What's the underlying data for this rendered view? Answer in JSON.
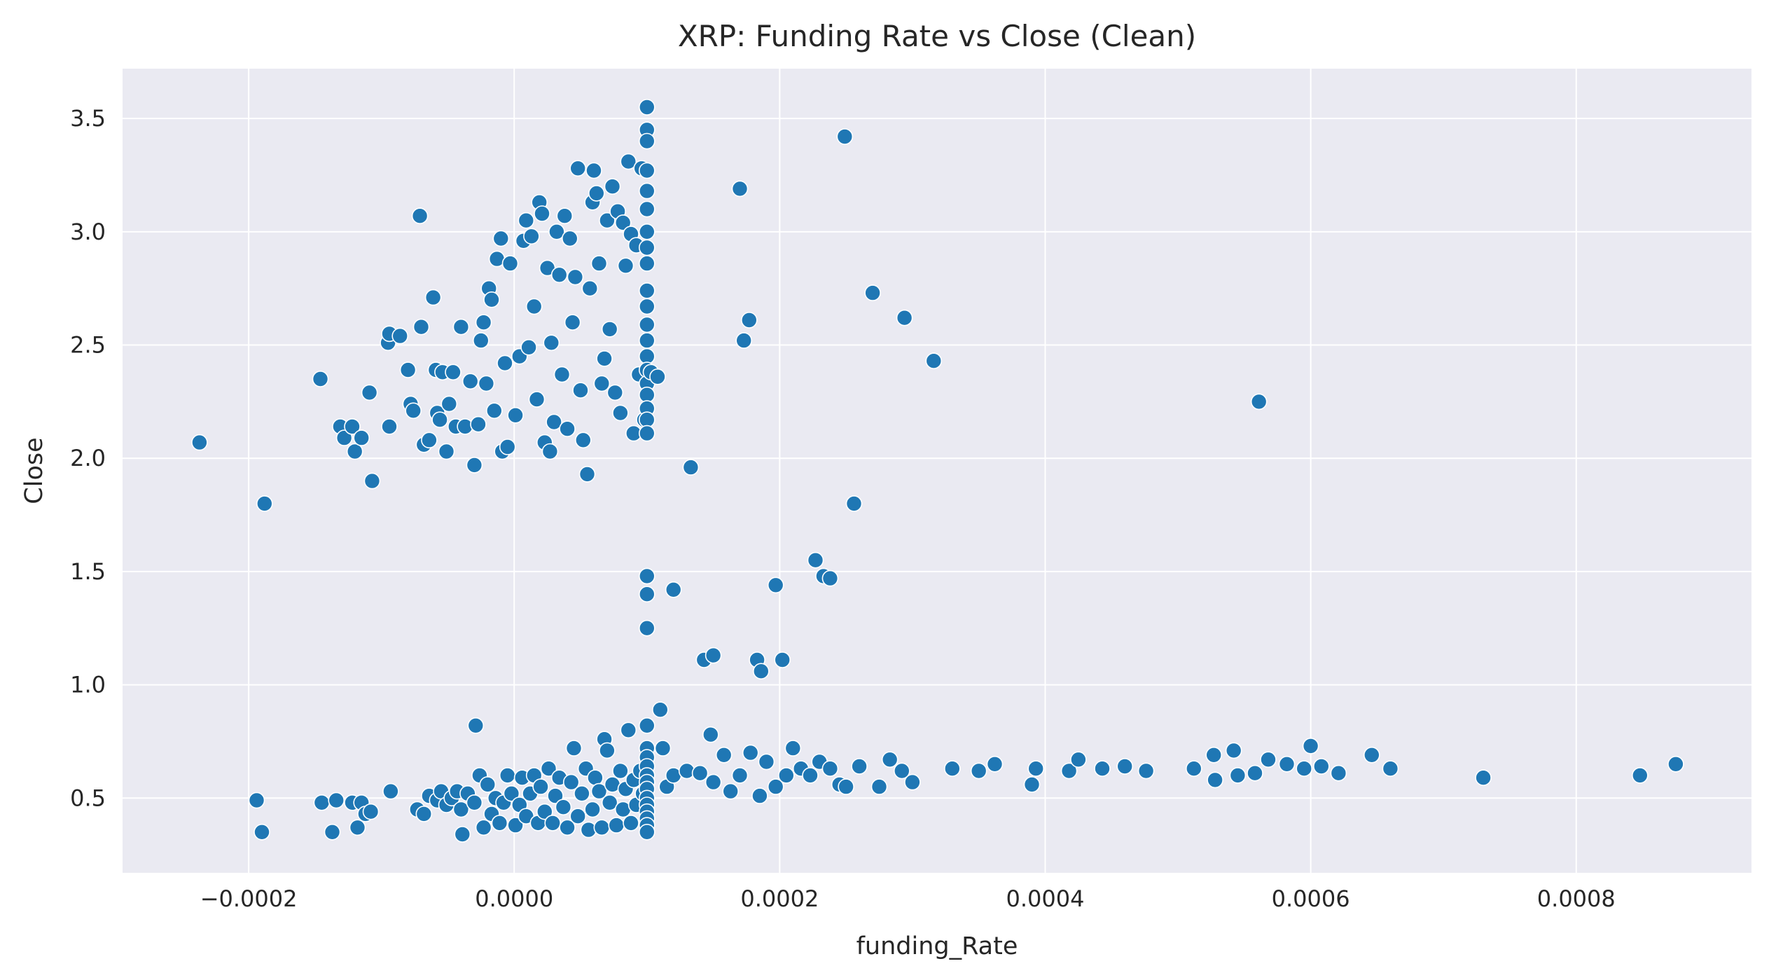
{
  "chart_data": {
    "type": "scatter",
    "title": "XRP: Funding Rate vs Close (Clean)",
    "xlabel": "funding_Rate",
    "ylabel": "Close",
    "xlim": [
      -0.000295,
      0.000932
    ],
    "ylim": [
      0.17,
      3.72
    ],
    "x_ticks": [
      -0.0002,
      0.0,
      0.0002,
      0.0004,
      0.0006,
      0.0008
    ],
    "x_tick_labels": [
      "−0.0002",
      "0.0000",
      "0.0002",
      "0.0004",
      "0.0006",
      "0.0008"
    ],
    "y_ticks": [
      0.5,
      1.0,
      1.5,
      2.0,
      2.5,
      3.0,
      3.5
    ],
    "y_tick_labels": [
      "0.5",
      "1.0",
      "1.5",
      "2.0",
      "2.5",
      "3.0",
      "3.5"
    ],
    "grid": true,
    "legend": "none",
    "colors": {
      "point": "#1f77b4",
      "point_edge": "#ffffff",
      "background": "#eaeaf2",
      "grid": "#ffffff"
    },
    "points": [
      [
        -0.000237,
        2.07
      ],
      [
        -0.000188,
        1.8
      ],
      [
        -0.000146,
        2.35
      ],
      [
        -0.000131,
        2.14
      ],
      [
        -0.000128,
        2.09
      ],
      [
        -0.000122,
        2.14
      ],
      [
        -0.00012,
        2.03
      ],
      [
        -0.000115,
        2.09
      ],
      [
        -0.000109,
        2.29
      ],
      [
        -0.000107,
        1.9
      ],
      [
        -9.5e-05,
        2.51
      ],
      [
        -9.4e-05,
        2.55
      ],
      [
        -9.4e-05,
        2.14
      ],
      [
        -8.6e-05,
        2.54
      ],
      [
        -8e-05,
        2.39
      ],
      [
        -7.8e-05,
        2.24
      ],
      [
        -7.6e-05,
        2.21
      ],
      [
        -7.1e-05,
        3.07
      ],
      [
        -7e-05,
        2.58
      ],
      [
        -6.8e-05,
        2.06
      ],
      [
        -6.4e-05,
        2.08
      ],
      [
        -6.1e-05,
        2.71
      ],
      [
        -5.9e-05,
        2.39
      ],
      [
        -5.8e-05,
        2.2
      ],
      [
        -5.6e-05,
        2.17
      ],
      [
        -5.4e-05,
        2.38
      ],
      [
        -5.1e-05,
        2.03
      ],
      [
        -4.9e-05,
        2.24
      ],
      [
        -4.6e-05,
        2.38
      ],
      [
        -4.4e-05,
        2.14
      ],
      [
        -4e-05,
        2.58
      ],
      [
        -3.7e-05,
        2.14
      ],
      [
        -3.3e-05,
        2.34
      ],
      [
        -3e-05,
        1.97
      ],
      [
        -2.7e-05,
        2.15
      ],
      [
        -2.5e-05,
        2.52
      ],
      [
        -2.3e-05,
        2.6
      ],
      [
        -2.1e-05,
        2.33
      ],
      [
        -1.9e-05,
        2.75
      ],
      [
        -1.7e-05,
        2.7
      ],
      [
        -1.5e-05,
        2.21
      ],
      [
        -1.3e-05,
        2.88
      ],
      [
        -1e-05,
        2.97
      ],
      [
        -9e-06,
        2.03
      ],
      [
        -7e-06,
        2.42
      ],
      [
        -5e-06,
        2.05
      ],
      [
        -3e-06,
        2.86
      ],
      [
        1e-06,
        2.19
      ],
      [
        4e-06,
        2.45
      ],
      [
        7e-06,
        2.96
      ],
      [
        9e-06,
        3.05
      ],
      [
        1.1e-05,
        2.49
      ],
      [
        1.3e-05,
        2.98
      ],
      [
        1.5e-05,
        2.67
      ],
      [
        1.7e-05,
        2.26
      ],
      [
        1.9e-05,
        3.13
      ],
      [
        2.1e-05,
        3.08
      ],
      [
        2.3e-05,
        2.07
      ],
      [
        2.5e-05,
        2.84
      ],
      [
        2.7e-05,
        2.03
      ],
      [
        2.8e-05,
        2.51
      ],
      [
        3e-05,
        2.16
      ],
      [
        3.2e-05,
        3.0
      ],
      [
        3.4e-05,
        2.81
      ],
      [
        3.6e-05,
        2.37
      ],
      [
        3.8e-05,
        3.07
      ],
      [
        4e-05,
        2.13
      ],
      [
        4.2e-05,
        2.97
      ],
      [
        4.4e-05,
        2.6
      ],
      [
        4.6e-05,
        2.8
      ],
      [
        4.8e-05,
        3.28
      ],
      [
        5e-05,
        2.3
      ],
      [
        5.2e-05,
        2.08
      ],
      [
        5.5e-05,
        1.93
      ],
      [
        5.7e-05,
        2.75
      ],
      [
        5.9e-05,
        3.13
      ],
      [
        6e-05,
        3.27
      ],
      [
        6.2e-05,
        3.17
      ],
      [
        6.4e-05,
        2.86
      ],
      [
        6.6e-05,
        2.33
      ],
      [
        6.8e-05,
        2.44
      ],
      [
        7e-05,
        3.05
      ],
      [
        7.2e-05,
        2.57
      ],
      [
        7.4e-05,
        3.2
      ],
      [
        7.6e-05,
        2.29
      ],
      [
        7.8e-05,
        3.09
      ],
      [
        8e-05,
        2.2
      ],
      [
        8.2e-05,
        3.04
      ],
      [
        8.4e-05,
        2.85
      ],
      [
        8.6e-05,
        3.31
      ],
      [
        8.8e-05,
        2.99
      ],
      [
        9e-05,
        2.11
      ],
      [
        9.2e-05,
        2.94
      ],
      [
        9.4e-05,
        2.37
      ],
      [
        9.6e-05,
        3.28
      ],
      [
        9.8e-05,
        2.17
      ],
      [
        0.0001,
        3.55
      ],
      [
        0.0001,
        3.45
      ],
      [
        0.0001,
        3.4
      ],
      [
        0.0001,
        3.27
      ],
      [
        0.0001,
        3.18
      ],
      [
        0.0001,
        3.1
      ],
      [
        0.0001,
        3.0
      ],
      [
        0.0001,
        2.93
      ],
      [
        0.0001,
        2.86
      ],
      [
        0.0001,
        2.74
      ],
      [
        0.0001,
        2.67
      ],
      [
        0.0001,
        2.59
      ],
      [
        0.0001,
        2.52
      ],
      [
        0.0001,
        2.45
      ],
      [
        0.0001,
        2.39
      ],
      [
        0.0001,
        2.33
      ],
      [
        0.0001,
        2.28
      ],
      [
        0.0001,
        2.22
      ],
      [
        0.0001,
        2.17
      ],
      [
        0.0001,
        2.11
      ],
      [
        0.000103,
        2.38
      ],
      [
        0.000108,
        2.36
      ],
      [
        0.000133,
        1.96
      ],
      [
        0.00017,
        3.19
      ],
      [
        0.000173,
        2.52
      ],
      [
        0.000177,
        2.61
      ],
      [
        0.000249,
        3.42
      ],
      [
        0.00027,
        2.73
      ],
      [
        0.000294,
        2.62
      ],
      [
        0.000316,
        2.43
      ],
      [
        0.000561,
        2.25
      ],
      [
        0.000256,
        1.8
      ],
      [
        0.0001,
        1.48
      ],
      [
        0.0001,
        1.4
      ],
      [
        0.0001,
        1.25
      ],
      [
        0.00012,
        1.42
      ],
      [
        0.000143,
        1.11
      ],
      [
        0.00015,
        1.13
      ],
      [
        0.000183,
        1.11
      ],
      [
        0.000186,
        1.06
      ],
      [
        0.000197,
        1.44
      ],
      [
        0.000202,
        1.11
      ],
      [
        0.000227,
        1.55
      ],
      [
        0.000233,
        1.48
      ],
      [
        0.000238,
        1.47
      ],
      [
        -0.000194,
        0.49
      ],
      [
        -0.00019,
        0.35
      ],
      [
        -0.000145,
        0.48
      ],
      [
        -0.000137,
        0.35
      ],
      [
        -0.000134,
        0.49
      ],
      [
        -0.000122,
        0.48
      ],
      [
        -0.000118,
        0.37
      ],
      [
        -0.000115,
        0.48
      ],
      [
        -0.000112,
        0.43
      ],
      [
        -0.000108,
        0.44
      ],
      [
        -9.3e-05,
        0.53
      ],
      [
        -7.3e-05,
        0.45
      ],
      [
        -6.8e-05,
        0.43
      ],
      [
        -6.4e-05,
        0.51
      ],
      [
        -5.8e-05,
        0.49
      ],
      [
        -5.5e-05,
        0.53
      ],
      [
        -5.1e-05,
        0.47
      ],
      [
        -4.7e-05,
        0.5
      ],
      [
        -4.3e-05,
        0.53
      ],
      [
        -4e-05,
        0.45
      ],
      [
        -3.9e-05,
        0.34
      ],
      [
        -3.5e-05,
        0.52
      ],
      [
        -3e-05,
        0.48
      ],
      [
        -2.9e-05,
        0.82
      ],
      [
        -2.6e-05,
        0.6
      ],
      [
        -2.3e-05,
        0.37
      ],
      [
        -2e-05,
        0.56
      ],
      [
        -1.7e-05,
        0.43
      ],
      [
        -1.4e-05,
        0.5
      ],
      [
        -1.1e-05,
        0.39
      ],
      [
        -8e-06,
        0.48
      ],
      [
        -5e-06,
        0.6
      ],
      [
        -2e-06,
        0.52
      ],
      [
        1e-06,
        0.38
      ],
      [
        4e-06,
        0.47
      ],
      [
        6e-06,
        0.59
      ],
      [
        9e-06,
        0.42
      ],
      [
        1.2e-05,
        0.52
      ],
      [
        1.5e-05,
        0.6
      ],
      [
        1.8e-05,
        0.39
      ],
      [
        2e-05,
        0.55
      ],
      [
        2.3e-05,
        0.44
      ],
      [
        2.6e-05,
        0.63
      ],
      [
        2.9e-05,
        0.39
      ],
      [
        3.1e-05,
        0.51
      ],
      [
        3.4e-05,
        0.59
      ],
      [
        3.7e-05,
        0.46
      ],
      [
        4e-05,
        0.37
      ],
      [
        4.3e-05,
        0.57
      ],
      [
        4.5e-05,
        0.72
      ],
      [
        4.8e-05,
        0.42
      ],
      [
        5.1e-05,
        0.52
      ],
      [
        5.4e-05,
        0.63
      ],
      [
        5.6e-05,
        0.36
      ],
      [
        5.9e-05,
        0.45
      ],
      [
        6.1e-05,
        0.59
      ],
      [
        6.4e-05,
        0.53
      ],
      [
        6.6e-05,
        0.37
      ],
      [
        6.8e-05,
        0.76
      ],
      [
        7e-05,
        0.71
      ],
      [
        7.2e-05,
        0.48
      ],
      [
        7.4e-05,
        0.56
      ],
      [
        7.7e-05,
        0.38
      ],
      [
        8e-05,
        0.62
      ],
      [
        8.2e-05,
        0.45
      ],
      [
        8.4e-05,
        0.54
      ],
      [
        8.6e-05,
        0.8
      ],
      [
        8.8e-05,
        0.39
      ],
      [
        9e-05,
        0.58
      ],
      [
        9.2e-05,
        0.47
      ],
      [
        9.5e-05,
        0.62
      ],
      [
        9.7e-05,
        0.52
      ],
      [
        0.0001,
        0.82
      ],
      [
        0.0001,
        0.72
      ],
      [
        0.0001,
        0.68
      ],
      [
        0.0001,
        0.64
      ],
      [
        0.0001,
        0.6
      ],
      [
        0.0001,
        0.57
      ],
      [
        0.0001,
        0.54
      ],
      [
        0.0001,
        0.5
      ],
      [
        0.0001,
        0.47
      ],
      [
        0.0001,
        0.44
      ],
      [
        0.0001,
        0.41
      ],
      [
        0.0001,
        0.38
      ],
      [
        0.0001,
        0.35
      ],
      [
        0.00011,
        0.89
      ],
      [
        0.000112,
        0.72
      ],
      [
        0.000115,
        0.55
      ],
      [
        0.00012,
        0.6
      ],
      [
        0.00013,
        0.62
      ],
      [
        0.00014,
        0.61
      ],
      [
        0.000148,
        0.78
      ],
      [
        0.00015,
        0.57
      ],
      [
        0.000158,
        0.69
      ],
      [
        0.000163,
        0.53
      ],
      [
        0.00017,
        0.6
      ],
      [
        0.000178,
        0.7
      ],
      [
        0.000185,
        0.51
      ],
      [
        0.00019,
        0.66
      ],
      [
        0.000197,
        0.55
      ],
      [
        0.000205,
        0.6
      ],
      [
        0.00021,
        0.72
      ],
      [
        0.000216,
        0.63
      ],
      [
        0.000223,
        0.6
      ],
      [
        0.00023,
        0.66
      ],
      [
        0.000238,
        0.63
      ],
      [
        0.000245,
        0.56
      ],
      [
        0.00025,
        0.55
      ],
      [
        0.00026,
        0.64
      ],
      [
        0.000275,
        0.55
      ],
      [
        0.000283,
        0.67
      ],
      [
        0.000292,
        0.62
      ],
      [
        0.0003,
        0.57
      ],
      [
        0.00033,
        0.63
      ],
      [
        0.00035,
        0.62
      ],
      [
        0.000362,
        0.65
      ],
      [
        0.00039,
        0.56
      ],
      [
        0.000393,
        0.63
      ],
      [
        0.000418,
        0.62
      ],
      [
        0.000425,
        0.67
      ],
      [
        0.000443,
        0.63
      ],
      [
        0.00046,
        0.64
      ],
      [
        0.000476,
        0.62
      ],
      [
        0.000512,
        0.63
      ],
      [
        0.000527,
        0.69
      ],
      [
        0.000528,
        0.58
      ],
      [
        0.000542,
        0.71
      ],
      [
        0.000545,
        0.6
      ],
      [
        0.000558,
        0.61
      ],
      [
        0.000568,
        0.67
      ],
      [
        0.000582,
        0.65
      ],
      [
        0.000595,
        0.63
      ],
      [
        0.0006,
        0.73
      ],
      [
        0.000608,
        0.64
      ],
      [
        0.000621,
        0.61
      ],
      [
        0.000646,
        0.69
      ],
      [
        0.00066,
        0.63
      ],
      [
        0.00073,
        0.59
      ],
      [
        0.000848,
        0.6
      ],
      [
        0.000875,
        0.65
      ]
    ]
  }
}
